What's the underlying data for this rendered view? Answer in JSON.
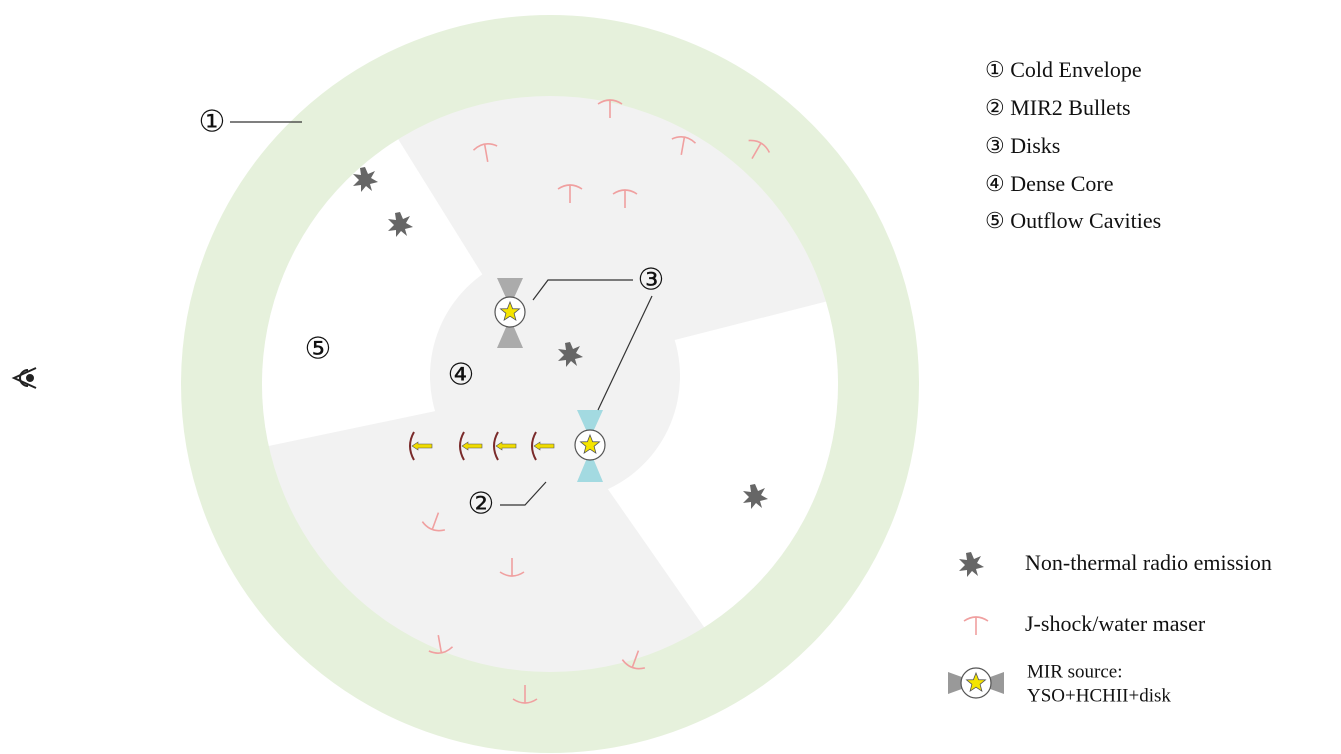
{
  "diagram_labels": [
    {
      "label": "①"
    },
    {
      "label": "②"
    },
    {
      "label": "③"
    },
    {
      "label": "④"
    },
    {
      "label": "⑤"
    }
  ],
  "key": [
    "① Cold Envelope",
    "② MIR2 Bullets",
    "③ Disks",
    "④ Dense Core",
    "⑤ Outflow Cavities"
  ],
  "legend": [
    {
      "label": "Non-thermal radio emission"
    },
    {
      "label": "J-shock/water maser"
    },
    {
      "label": "MIR source:",
      "sublabel": "YSO+HCHII+disk"
    }
  ]
}
